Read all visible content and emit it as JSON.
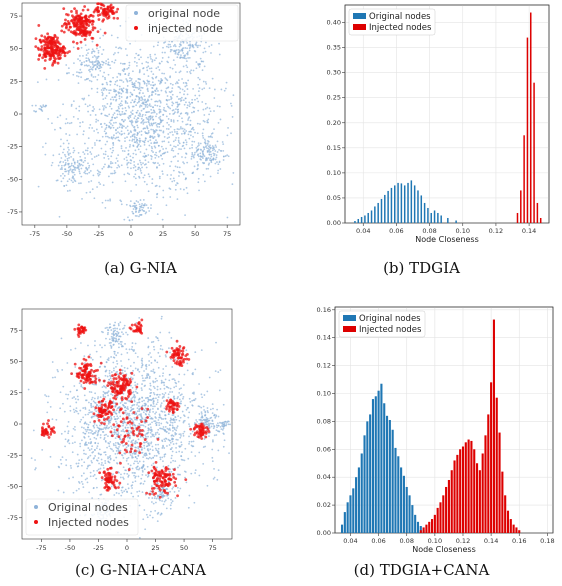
{
  "captions": {
    "a": "(a)  G-NIA",
    "b": "(b)  TDGIA",
    "c": "(c)  G-NIA+CANA",
    "d": "(d)  TDGIA+CANA"
  },
  "chart_data": [
    {
      "id": "a",
      "type": "scatter",
      "title": "",
      "xlabel": "",
      "ylabel": "",
      "xlim": [
        -85,
        85
      ],
      "ylim": [
        -85,
        85
      ],
      "xticks": [
        -75,
        -50,
        -25,
        0,
        25,
        50,
        75
      ],
      "yticks": [
        -75,
        -50,
        -25,
        0,
        25,
        50,
        75
      ],
      "ytick_labels": [
        "-75",
        "-50",
        "-25",
        "0",
        "25",
        "50",
        "75"
      ],
      "legend_position": "top-right",
      "series": [
        {
          "name": "original node",
          "color": "#8fb3d9",
          "clusters": [
            {
              "cx": 10,
              "cy": -5,
              "r": 58,
              "n": 1400
            },
            {
              "cx": 40,
              "cy": 55,
              "r": 16,
              "n": 180
            },
            {
              "cx": -30,
              "cy": 40,
              "r": 12,
              "n": 90
            },
            {
              "cx": 60,
              "cy": -30,
              "r": 14,
              "n": 120
            },
            {
              "cx": -45,
              "cy": -40,
              "r": 14,
              "n": 120
            },
            {
              "cx": 5,
              "cy": -72,
              "r": 8,
              "n": 50
            },
            {
              "cx": -70,
              "cy": 5,
              "r": 4,
              "n": 15
            }
          ]
        },
        {
          "name": "injected node",
          "color": "#ee1111",
          "clusters": [
            {
              "cx": -62,
              "cy": 50,
              "r": 10,
              "n": 180
            },
            {
              "cx": -40,
              "cy": 68,
              "r": 12,
              "n": 180
            },
            {
              "cx": -20,
              "cy": 80,
              "r": 8,
              "n": 80
            }
          ]
        }
      ]
    },
    {
      "id": "b",
      "type": "bar",
      "title": "",
      "xlabel": "Node Closeness",
      "ylabel": "",
      "xlim": [
        0.029,
        0.152
      ],
      "ylim": [
        0,
        0.435
      ],
      "xticks": [
        0.04,
        0.06,
        0.08,
        0.1,
        0.12,
        0.14
      ],
      "xtick_labels": [
        "0.04",
        "0.06",
        "0.08",
        "0.10",
        "0.12",
        "0.14"
      ],
      "yticks": [
        0,
        0.05,
        0.1,
        0.15,
        0.2,
        0.25,
        0.3,
        0.35,
        0.4
      ],
      "ytick_labels": [
        "0.00",
        "0.05",
        "0.10",
        "0.15",
        "0.20",
        "0.25",
        "0.30",
        "0.35",
        "0.40"
      ],
      "grid": true,
      "legend_position": "top-left",
      "bar_width": 0.0009,
      "series": [
        {
          "name": "Original nodes",
          "color": "#1f77b4",
          "x": [
            0.035,
            0.037,
            0.039,
            0.041,
            0.043,
            0.045,
            0.047,
            0.049,
            0.051,
            0.053,
            0.055,
            0.057,
            0.059,
            0.061,
            0.063,
            0.065,
            0.067,
            0.069,
            0.071,
            0.073,
            0.075,
            0.077,
            0.079,
            0.081,
            0.083,
            0.085,
            0.087,
            0.091,
            0.096
          ],
          "values": [
            0.004,
            0.008,
            0.012,
            0.015,
            0.02,
            0.025,
            0.033,
            0.04,
            0.048,
            0.056,
            0.064,
            0.07,
            0.075,
            0.08,
            0.079,
            0.075,
            0.08,
            0.085,
            0.075,
            0.065,
            0.055,
            0.04,
            0.03,
            0.02,
            0.025,
            0.02,
            0.015,
            0.01,
            0.005
          ]
        },
        {
          "name": "Injected nodes",
          "color": "#dd0000",
          "x": [
            0.133,
            0.135,
            0.137,
            0.139,
            0.141,
            0.143,
            0.145,
            0.147
          ],
          "values": [
            0.02,
            0.065,
            0.175,
            0.37,
            0.42,
            0.28,
            0.04,
            0.01
          ]
        }
      ]
    },
    {
      "id": "c",
      "type": "scatter",
      "title": "",
      "xlabel": "",
      "ylabel": "",
      "xlim": [
        -92,
        92
      ],
      "ylim": [
        -92,
        92
      ],
      "xticks": [
        -75,
        -50,
        -25,
        0,
        25,
        50,
        75
      ],
      "yticks": [
        -75,
        -50,
        -25,
        0,
        25,
        50,
        75
      ],
      "ytick_labels": [
        "-75",
        "-50",
        "-25",
        "0",
        "25",
        "50",
        "75"
      ],
      "legend_position": "bottom-left",
      "series": [
        {
          "name": "Original nodes",
          "color": "#8fb3d9",
          "clusters": [
            {
              "cx": 5,
              "cy": 0,
              "r": 62,
              "n": 1700
            },
            {
              "cx": 70,
              "cy": 0,
              "r": 10,
              "n": 90
            },
            {
              "cx": 85,
              "cy": 0,
              "r": 5,
              "n": 30
            },
            {
              "cx": -10,
              "cy": 70,
              "r": 10,
              "n": 80
            },
            {
              "cx": -20,
              "cy": -70,
              "r": 10,
              "n": 80
            },
            {
              "cx": 30,
              "cy": -55,
              "r": 10,
              "n": 70
            }
          ]
        },
        {
          "name": "Injected nodes",
          "color": "#ee1111",
          "clusters": [
            {
              "cx": -35,
              "cy": 40,
              "r": 10,
              "n": 90
            },
            {
              "cx": -5,
              "cy": 30,
              "r": 10,
              "n": 110
            },
            {
              "cx": -20,
              "cy": 10,
              "r": 8,
              "n": 70
            },
            {
              "cx": 45,
              "cy": 55,
              "r": 8,
              "n": 60
            },
            {
              "cx": 10,
              "cy": 75,
              "r": 5,
              "n": 30
            },
            {
              "cx": -40,
              "cy": 75,
              "r": 5,
              "n": 30
            },
            {
              "cx": 30,
              "cy": -45,
              "r": 12,
              "n": 100
            },
            {
              "cx": -15,
              "cy": -45,
              "r": 8,
              "n": 60
            },
            {
              "cx": 65,
              "cy": -5,
              "r": 6,
              "n": 50
            },
            {
              "cx": -70,
              "cy": -5,
              "r": 6,
              "n": 40
            },
            {
              "cx": 40,
              "cy": 15,
              "r": 6,
              "n": 40
            },
            {
              "cx": 5,
              "cy": -10,
              "r": 18,
              "n": 60
            }
          ]
        }
      ]
    },
    {
      "id": "d",
      "type": "bar",
      "title": "",
      "xlabel": "Node Closeness",
      "ylabel": "",
      "xlim": [
        0.029,
        0.184
      ],
      "ylim": [
        0,
        0.162
      ],
      "xticks": [
        0.04,
        0.06,
        0.08,
        0.1,
        0.12,
        0.14,
        0.16,
        0.18
      ],
      "xtick_labels": [
        "0.04",
        "0.06",
        "0.08",
        "0.10",
        "0.12",
        "0.14",
        "0.16",
        "0.18"
      ],
      "yticks": [
        0,
        0.02,
        0.04,
        0.06,
        0.08,
        0.1,
        0.12,
        0.14,
        0.16
      ],
      "ytick_labels": [
        "0.00",
        "0.02",
        "0.04",
        "0.06",
        "0.08",
        "0.10",
        "0.12",
        "0.14",
        "0.16"
      ],
      "grid": true,
      "legend_position": "top-left",
      "bar_width": 0.0015,
      "series": [
        {
          "name": "Original nodes",
          "color": "#1f77b4",
          "x": [
            0.034,
            0.036,
            0.038,
            0.04,
            0.042,
            0.044,
            0.046,
            0.048,
            0.05,
            0.052,
            0.054,
            0.056,
            0.058,
            0.06,
            0.062,
            0.064,
            0.066,
            0.068,
            0.07,
            0.072,
            0.074,
            0.076,
            0.078,
            0.08,
            0.082,
            0.084,
            0.086,
            0.088,
            0.09,
            0.092
          ],
          "values": [
            0.006,
            0.015,
            0.022,
            0.027,
            0.032,
            0.04,
            0.047,
            0.057,
            0.07,
            0.08,
            0.085,
            0.096,
            0.098,
            0.102,
            0.107,
            0.093,
            0.084,
            0.081,
            0.074,
            0.061,
            0.055,
            0.047,
            0.041,
            0.033,
            0.027,
            0.02,
            0.013,
            0.008,
            0.005,
            0.002
          ]
        },
        {
          "name": "Injected nodes",
          "color": "#dd0000",
          "x": [
            0.09,
            0.092,
            0.094,
            0.096,
            0.098,
            0.1,
            0.102,
            0.104,
            0.106,
            0.108,
            0.11,
            0.112,
            0.114,
            0.116,
            0.118,
            0.12,
            0.122,
            0.124,
            0.126,
            0.128,
            0.13,
            0.132,
            0.134,
            0.136,
            0.138,
            0.14,
            0.142,
            0.144,
            0.146,
            0.148,
            0.15,
            0.152,
            0.154,
            0.156,
            0.158,
            0.16
          ],
          "values": [
            0.002,
            0.004,
            0.006,
            0.008,
            0.01,
            0.013,
            0.018,
            0.022,
            0.027,
            0.033,
            0.038,
            0.045,
            0.052,
            0.056,
            0.06,
            0.062,
            0.065,
            0.067,
            0.066,
            0.06,
            0.05,
            0.045,
            0.057,
            0.07,
            0.085,
            0.108,
            0.153,
            0.097,
            0.072,
            0.044,
            0.027,
            0.016,
            0.01,
            0.006,
            0.004,
            0.002
          ]
        }
      ]
    }
  ]
}
